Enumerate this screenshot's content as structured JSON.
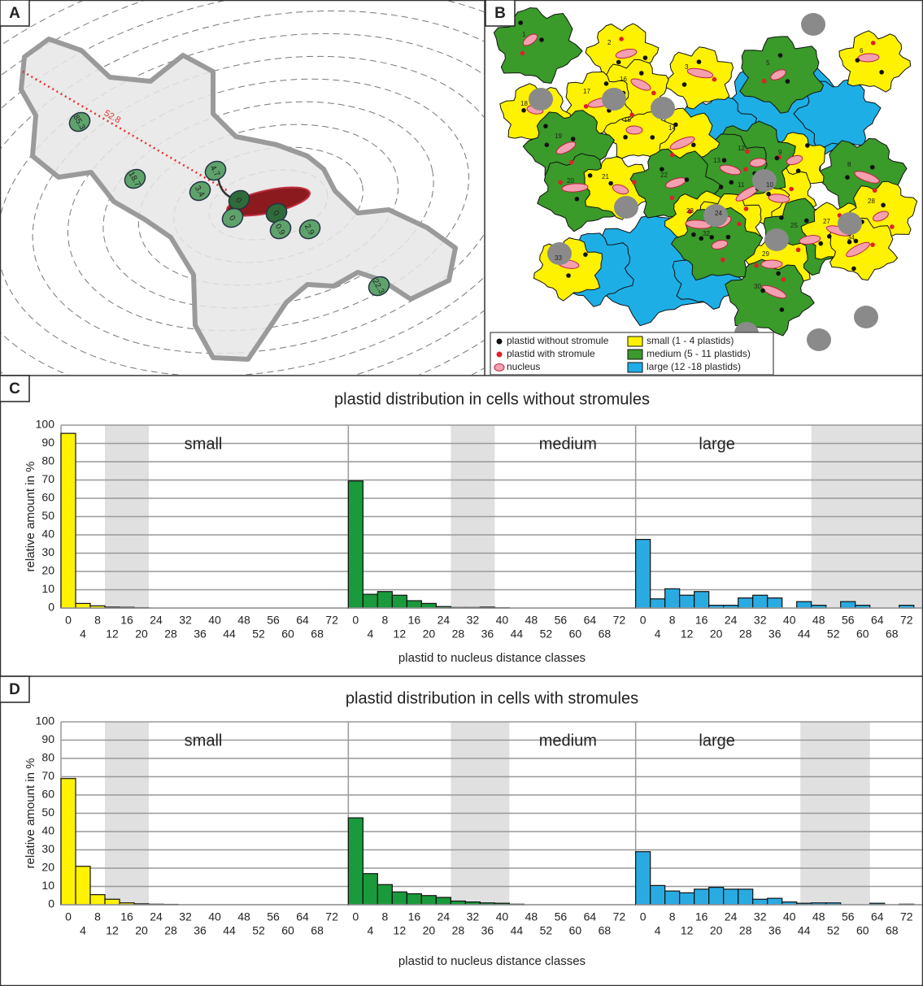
{
  "panel_a": {
    "letter": "A",
    "distance_label": "52.8",
    "plastid_labels": [
      "85.3",
      "18.7",
      "4.7",
      "3.4",
      "0",
      "0",
      "0",
      "0.9",
      "2.9",
      "22.3"
    ]
  },
  "panel_b": {
    "letter": "B",
    "cell_labels": [
      "1",
      "2",
      "3",
      "5",
      "6",
      "8",
      "9",
      "10",
      "11",
      "12",
      "13",
      "14",
      "15",
      "16",
      "17",
      "18",
      "19",
      "20",
      "21",
      "22",
      "23",
      "24",
      "25",
      "27",
      "28",
      "29",
      "30",
      "32",
      "33",
      "34"
    ],
    "legend": [
      "plastid without stromule",
      "plastid with stromule",
      "nucleus",
      "small (1 - 4 plastids)",
      "medium (5 - 11 plastids)",
      "large (12 -18 plastids)"
    ]
  },
  "rows": [
    {
      "letter": "C",
      "title": "plastid distribution in cells without stromules",
      "ylabel": "relative amount in %",
      "xlabel": "plastid to nucleus distance classes"
    },
    {
      "letter": "D",
      "title": "plastid distribution in cells with stromules",
      "ylabel": "relative amount in %",
      "xlabel": "plastid to nucleus distance classes"
    }
  ],
  "chart_data": [
    {
      "type": "bar",
      "title": "small",
      "color": "#fff200",
      "x": [
        0,
        4,
        8,
        12,
        16,
        20,
        24,
        28,
        32,
        36,
        40,
        44,
        48,
        52,
        56,
        60,
        64,
        68,
        72
      ],
      "values": [
        95.5,
        2.5,
        1.2,
        0.5,
        0.4,
        0.2,
        0,
        0,
        0,
        0,
        0,
        0,
        0,
        0,
        0,
        0,
        0,
        0,
        0
      ],
      "xlim": [
        -2,
        76.5
      ],
      "ylim": [
        0,
        100
      ],
      "xticks": [
        0,
        4,
        8,
        12,
        16,
        20,
        24,
        28,
        32,
        36,
        40,
        44,
        48,
        52,
        56,
        60,
        64,
        68,
        72
      ],
      "yticks": [
        0,
        10,
        20,
        30,
        40,
        50,
        60,
        70,
        80,
        90,
        100
      ],
      "grid": true,
      "shaded": [
        10,
        22
      ]
    },
    {
      "type": "bar",
      "title": "medium",
      "color": "#1a9a3c",
      "x": [
        0,
        4,
        8,
        12,
        16,
        20,
        24,
        28,
        32,
        36,
        40,
        44,
        48,
        52,
        56,
        60,
        64,
        68,
        72
      ],
      "values": [
        69.5,
        7.5,
        9,
        7,
        4,
        2.5,
        0.8,
        0.3,
        0.3,
        0.5,
        0.2,
        0,
        0,
        0,
        0,
        0,
        0,
        0,
        0
      ],
      "xlim": [
        -2,
        76.5
      ],
      "ylim": [
        0,
        100
      ],
      "xticks": [
        0,
        4,
        8,
        12,
        16,
        20,
        24,
        28,
        32,
        36,
        40,
        44,
        48,
        52,
        56,
        60,
        64,
        68,
        72
      ],
      "yticks": [
        0,
        10,
        20,
        30,
        40,
        50,
        60,
        70,
        80,
        90,
        100
      ],
      "grid": true,
      "shaded": [
        26,
        38
      ]
    },
    {
      "type": "bar",
      "title": "large",
      "color": "#29abe2",
      "x": [
        0,
        4,
        8,
        12,
        16,
        20,
        24,
        28,
        32,
        36,
        40,
        44,
        48,
        52,
        56,
        60,
        64,
        68,
        72
      ],
      "values": [
        37.5,
        5,
        10.5,
        7,
        9,
        1.5,
        1.5,
        5.5,
        7,
        5.5,
        0,
        3.5,
        1.5,
        0,
        3.5,
        1.5,
        0,
        0,
        1.5
      ],
      "xlim": [
        -2,
        76.5
      ],
      "ylim": [
        0,
        100
      ],
      "xticks": [
        0,
        4,
        8,
        12,
        16,
        20,
        24,
        28,
        32,
        36,
        40,
        44,
        48,
        52,
        56,
        60,
        64,
        68,
        72
      ],
      "yticks": [
        0,
        10,
        20,
        30,
        40,
        50,
        60,
        70,
        80,
        90,
        100
      ],
      "grid": true,
      "shaded": [
        46,
        76.5
      ]
    },
    {
      "type": "bar",
      "title": "small",
      "color": "#fff200",
      "x": [
        0,
        4,
        8,
        12,
        16,
        20,
        24,
        28,
        32,
        36,
        40,
        44,
        48,
        52,
        56,
        60,
        64,
        68,
        72
      ],
      "values": [
        69,
        21,
        5.5,
        3,
        1,
        0.5,
        0.3,
        0.2,
        0,
        0,
        0,
        0,
        0,
        0,
        0,
        0,
        0,
        0,
        0
      ],
      "xlim": [
        -2,
        76.5
      ],
      "ylim": [
        0,
        100
      ],
      "xticks": [
        0,
        4,
        8,
        12,
        16,
        20,
        24,
        28,
        32,
        36,
        40,
        44,
        48,
        52,
        56,
        60,
        64,
        68,
        72
      ],
      "yticks": [
        0,
        10,
        20,
        30,
        40,
        50,
        60,
        70,
        80,
        90,
        100
      ],
      "grid": true,
      "shaded": [
        10,
        22
      ]
    },
    {
      "type": "bar",
      "title": "medium",
      "color": "#1a9a3c",
      "x": [
        0,
        4,
        8,
        12,
        16,
        20,
        24,
        28,
        32,
        36,
        40,
        44,
        48,
        52,
        56,
        60,
        64,
        68,
        72
      ],
      "values": [
        47.5,
        17,
        11,
        7,
        6,
        5,
        4,
        2,
        1.5,
        1,
        0.8,
        0.3,
        0,
        0,
        0,
        0,
        0,
        0,
        0
      ],
      "xlim": [
        -2,
        76.5
      ],
      "ylim": [
        0,
        100
      ],
      "xticks": [
        0,
        4,
        8,
        12,
        16,
        20,
        24,
        28,
        32,
        36,
        40,
        44,
        48,
        52,
        56,
        60,
        64,
        68,
        72
      ],
      "yticks": [
        0,
        10,
        20,
        30,
        40,
        50,
        60,
        70,
        80,
        90,
        100
      ],
      "grid": true,
      "shaded": [
        26,
        42
      ]
    },
    {
      "type": "bar",
      "title": "large",
      "color": "#29abe2",
      "x": [
        0,
        4,
        8,
        12,
        16,
        20,
        24,
        28,
        32,
        36,
        40,
        44,
        48,
        52,
        56,
        60,
        64,
        68,
        72
      ],
      "values": [
        29,
        10.5,
        7.5,
        6.5,
        8.5,
        9.5,
        8.5,
        8.5,
        3,
        3.5,
        1.5,
        0.8,
        1,
        1,
        0,
        0,
        0.8,
        0,
        0.3
      ],
      "xlim": [
        -2,
        76.5
      ],
      "ylim": [
        0,
        100
      ],
      "xticks": [
        0,
        4,
        8,
        12,
        16,
        20,
        24,
        28,
        32,
        36,
        40,
        44,
        48,
        52,
        56,
        60,
        64,
        68,
        72
      ],
      "yticks": [
        0,
        10,
        20,
        30,
        40,
        50,
        60,
        70,
        80,
        90,
        100
      ],
      "grid": true,
      "shaded": [
        43,
        62
      ]
    }
  ]
}
